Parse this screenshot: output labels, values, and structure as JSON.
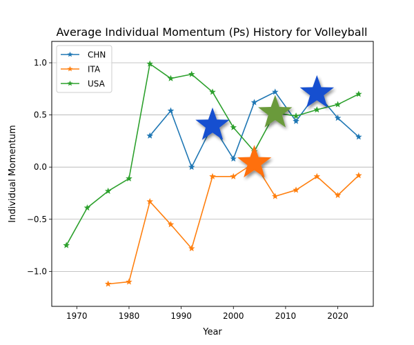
{
  "chart_data": {
    "type": "line",
    "title": "Average Individual Momentum (Ps) History for Volleyball",
    "xlabel": "Year",
    "ylabel": "Individual Momentum",
    "xlim": [
      1965.2,
      1966.8
    ],
    "xlim_note": "",
    "ylim": [
      -1.335,
      1.205
    ],
    "xticks": [
      1970,
      1980,
      1990,
      2000,
      2010,
      2020
    ],
    "yticks": [
      -1.0,
      -0.5,
      0.0,
      0.5,
      1.0
    ],
    "ytick_labels": [
      "−1.0",
      "−0.5",
      "0.0",
      "0.5",
      "1.0"
    ],
    "grid": "horizontal",
    "legend_position": "upper-left",
    "series": [
      {
        "name": "CHN",
        "color": "#1f77b4",
        "x": [
          1984,
          1988,
          1992,
          1996,
          2000,
          2004,
          2008,
          2012,
          2016,
          2020,
          2024
        ],
        "y": [
          0.3,
          0.54,
          0.0,
          0.4,
          0.08,
          0.62,
          0.72,
          0.44,
          0.71,
          0.47,
          0.29
        ]
      },
      {
        "name": "ITA",
        "color": "#ff7f0e",
        "x": [
          1976,
          1980,
          1984,
          1988,
          1992,
          1996,
          2000,
          2004,
          2008,
          2012,
          2016,
          2020,
          2024
        ],
        "y": [
          -1.12,
          -1.1,
          -0.33,
          -0.55,
          -0.78,
          -0.09,
          -0.09,
          0.04,
          -0.28,
          -0.22,
          -0.09,
          -0.27,
          -0.08
        ]
      },
      {
        "name": "USA",
        "color": "#2ca02c",
        "x": [
          1968,
          1972,
          1976,
          1980,
          1984,
          1988,
          1992,
          1996,
          2000,
          2004,
          2008,
          2012,
          2016,
          2020,
          2024
        ],
        "y": [
          -0.75,
          -0.39,
          -0.23,
          -0.11,
          0.99,
          0.85,
          0.89,
          0.72,
          0.38,
          0.15,
          0.52,
          0.49,
          0.55,
          0.6,
          0.7
        ]
      }
    ],
    "highlight_stars": [
      {
        "x": 1996,
        "y": 0.4,
        "color": "#1550d0"
      },
      {
        "x": 2004,
        "y": 0.04,
        "color": "#ff7010"
      },
      {
        "x": 2008,
        "y": 0.52,
        "color": "#6a9a3a"
      },
      {
        "x": 2016,
        "y": 0.71,
        "color": "#1550d0"
      }
    ]
  }
}
